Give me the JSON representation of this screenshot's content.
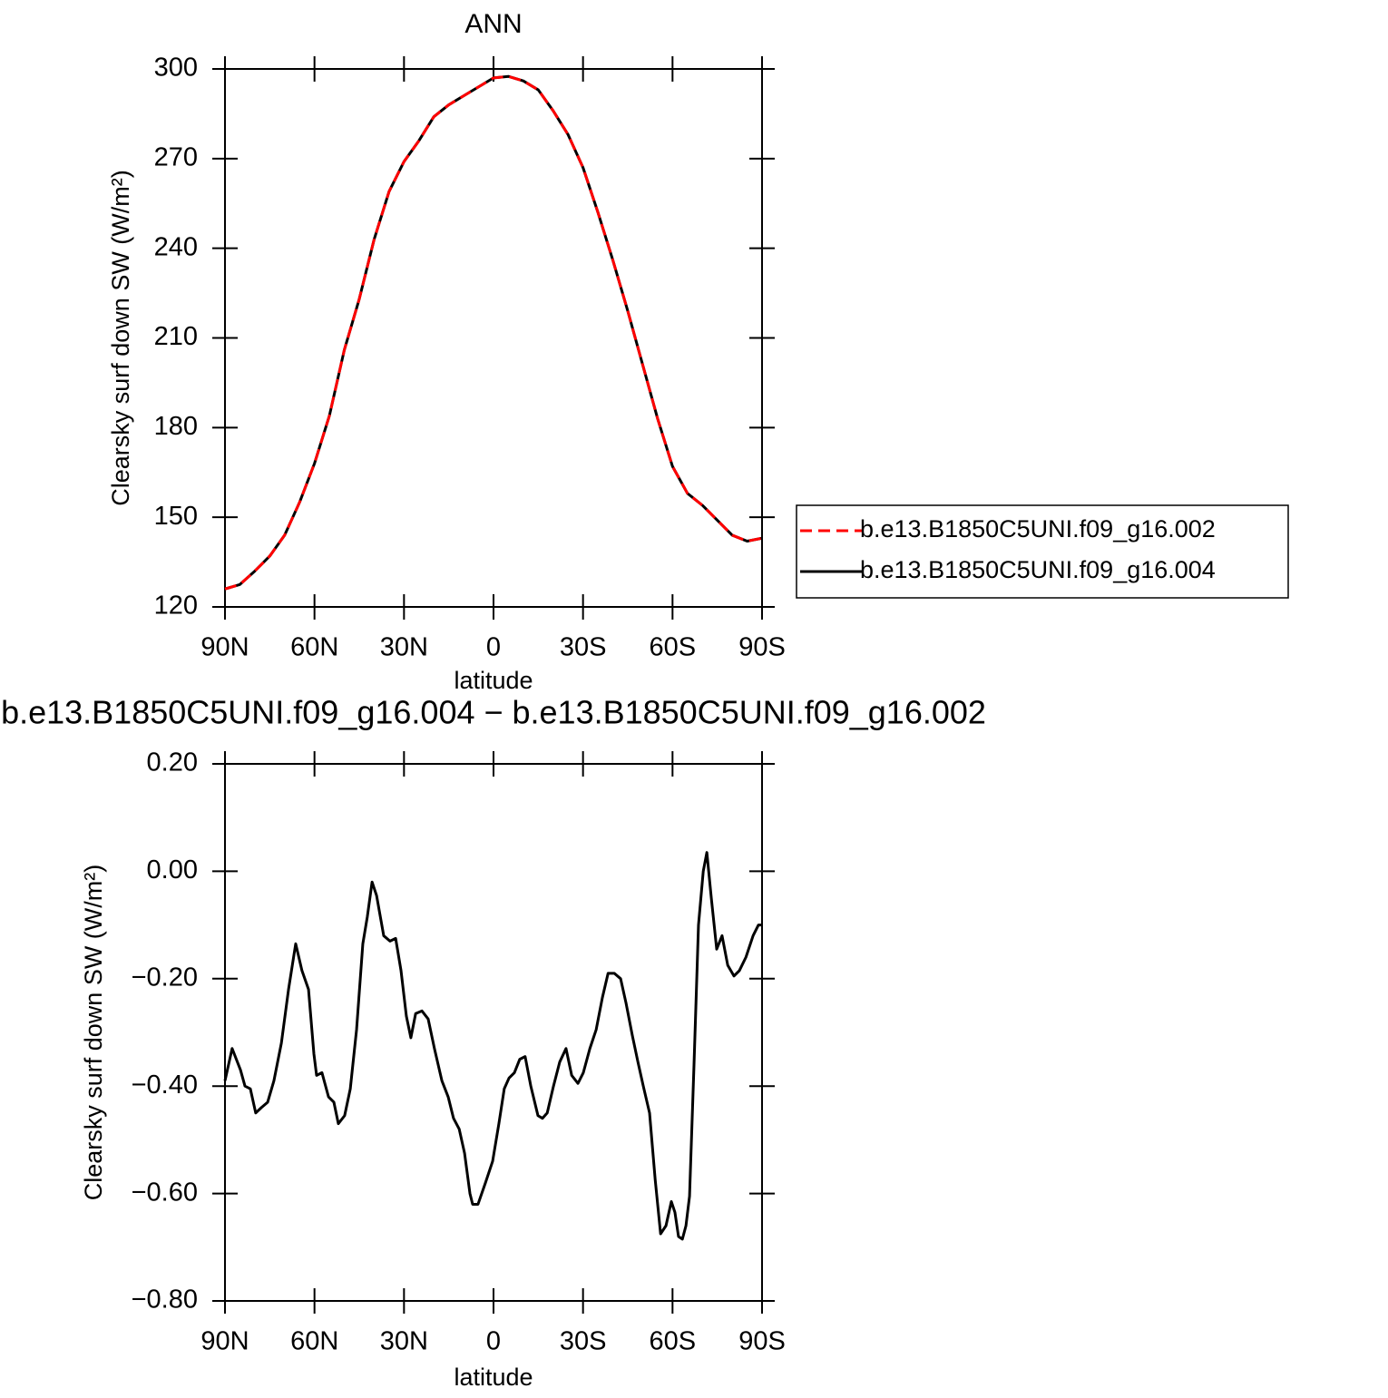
{
  "chart_data": [
    {
      "type": "line",
      "title": "ANN",
      "xlabel": "latitude",
      "ylabel": "Clearsky surf down SW (W/m²)",
      "x": [
        90,
        85,
        80,
        75,
        70,
        65,
        60,
        55,
        50,
        45,
        40,
        35,
        30,
        25,
        20,
        15,
        10,
        5,
        0,
        -5,
        -10,
        -15,
        -20,
        -25,
        -30,
        -35,
        -40,
        -45,
        -50,
        -55,
        -60,
        -65,
        -70,
        -75,
        -80,
        -85,
        -90
      ],
      "series": [
        {
          "name": "b.e13.B1850C5UNI.f09_g16.002",
          "color": "#ff0000",
          "dashed": true,
          "values": [
            126,
            127.5,
            132,
            137,
            144,
            155,
            168,
            184,
            206,
            223,
            243,
            259,
            269,
            276,
            284,
            288,
            291,
            294,
            297,
            297.5,
            296,
            293,
            286,
            278,
            267,
            252,
            236,
            219,
            201,
            183,
            167,
            158,
            154,
            149,
            144,
            142,
            143
          ]
        },
        {
          "name": "b.e13.B1850C5UNI.f09_g16.004",
          "color": "#000000",
          "dashed": false,
          "values": [
            126,
            127.5,
            132,
            137,
            144,
            155,
            168,
            184,
            206,
            223,
            243,
            259,
            269,
            276,
            284,
            288,
            291,
            294,
            297,
            297.5,
            296,
            293,
            286,
            278,
            267,
            252,
            236,
            219,
            201,
            183,
            167,
            158,
            154,
            149,
            144,
            142,
            143
          ]
        }
      ],
      "xlim": [
        90,
        -90
      ],
      "xticks": [
        {
          "value": 90,
          "label": "90N"
        },
        {
          "value": 60,
          "label": "60N"
        },
        {
          "value": 30,
          "label": "30N"
        },
        0,
        {
          "value": -30,
          "label": "30S"
        },
        {
          "value": -60,
          "label": "60S"
        },
        {
          "value": -90,
          "label": "90S"
        }
      ],
      "ylim": [
        120,
        300
      ],
      "yticks": [
        120,
        150,
        180,
        210,
        240,
        270,
        300
      ],
      "legend": "right"
    },
    {
      "type": "line",
      "title": "b.e13.B1850C5UNI.f09_g16.004 − b.e13.B1850C5UNI.f09_g16.002",
      "xlabel": "latitude",
      "ylabel": "Clearsky surf down SW (W/m²)",
      "x": [
        90,
        87.6,
        84.8,
        83.3,
        81.5,
        79.7,
        77.8,
        75.7,
        73.6,
        71.1,
        68.7,
        66.3,
        64.2,
        62,
        60.2,
        59.3,
        57.5,
        55.3,
        53.5,
        52,
        49.9,
        48,
        45.9,
        43.8,
        42.3,
        40.7,
        39.2,
        36.8,
        34.7,
        32.8,
        31,
        29.2,
        27.7,
        26.1,
        24,
        21.9,
        19.8,
        17.3,
        15.2,
        13.4,
        11.5,
        9.7,
        7.9,
        7,
        5.2,
        2.7,
        0.3,
        -1.8,
        -3.6,
        -5.2,
        -7,
        -8.8,
        -10.6,
        -12.5,
        -14.9,
        -16.4,
        -18,
        -20.1,
        -22.2,
        -24.3,
        -26.2,
        -28.3,
        -30.1,
        -32.3,
        -34.4,
        -36.5,
        -38.4,
        -40.5,
        -42.6,
        -44.4,
        -46.5,
        -48.4,
        -50.2,
        -52.3,
        -54.2,
        -56,
        -57.8,
        -59.6,
        -60.8,
        -62,
        -63.3,
        -64.5,
        -65.7,
        -67.2,
        -68.7,
        -70.3,
        -71.5,
        -73,
        -74.8,
        -76.6,
        -78.5,
        -80.6,
        -82.4,
        -84.6,
        -87,
        -88.8,
        -90
      ],
      "series": [
        {
          "color": "#000000",
          "dashed": false,
          "values": [
            -0.39,
            -0.33,
            -0.37,
            -0.4,
            -0.405,
            -0.45,
            -0.44,
            -0.43,
            -0.39,
            -0.32,
            -0.22,
            -0.135,
            -0.185,
            -0.22,
            -0.34,
            -0.38,
            -0.375,
            -0.42,
            -0.43,
            -0.47,
            -0.455,
            -0.405,
            -0.295,
            -0.135,
            -0.085,
            -0.02,
            -0.045,
            -0.12,
            -0.13,
            -0.125,
            -0.185,
            -0.27,
            -0.31,
            -0.265,
            -0.26,
            -0.275,
            -0.33,
            -0.39,
            -0.42,
            -0.46,
            -0.48,
            -0.525,
            -0.6,
            -0.62,
            -0.62,
            -0.58,
            -0.54,
            -0.47,
            -0.405,
            -0.385,
            -0.375,
            -0.35,
            -0.345,
            -0.4,
            -0.455,
            -0.46,
            -0.45,
            -0.4,
            -0.355,
            -0.33,
            -0.38,
            -0.395,
            -0.375,
            -0.33,
            -0.295,
            -0.235,
            -0.19,
            -0.19,
            -0.2,
            -0.245,
            -0.305,
            -0.355,
            -0.4,
            -0.45,
            -0.575,
            -0.675,
            -0.66,
            -0.615,
            -0.635,
            -0.68,
            -0.685,
            -0.66,
            -0.605,
            -0.36,
            -0.1,
            0.0,
            0.035,
            -0.05,
            -0.145,
            -0.12,
            -0.175,
            -0.195,
            -0.185,
            -0.16,
            -0.12,
            -0.1,
            -0.1
          ]
        }
      ],
      "xlim": [
        90,
        -90
      ],
      "xticks": [
        {
          "value": 90,
          "label": "90N"
        },
        {
          "value": 60,
          "label": "60N"
        },
        {
          "value": 30,
          "label": "30N"
        },
        0,
        {
          "value": -30,
          "label": "30S"
        },
        {
          "value": -60,
          "label": "60S"
        },
        {
          "value": -90,
          "label": "90S"
        }
      ],
      "ylim": [
        -0.8,
        0.2
      ],
      "yticks": [
        {
          "value": 0.2,
          "label": "0.20"
        },
        {
          "value": 0,
          "label": "0.00"
        },
        {
          "value": -0.2,
          "label": "−0.20"
        },
        {
          "value": -0.4,
          "label": "−0.40"
        },
        {
          "value": -0.6,
          "label": "−0.60"
        },
        {
          "value": -0.8,
          "label": "−0.80"
        }
      ]
    }
  ]
}
